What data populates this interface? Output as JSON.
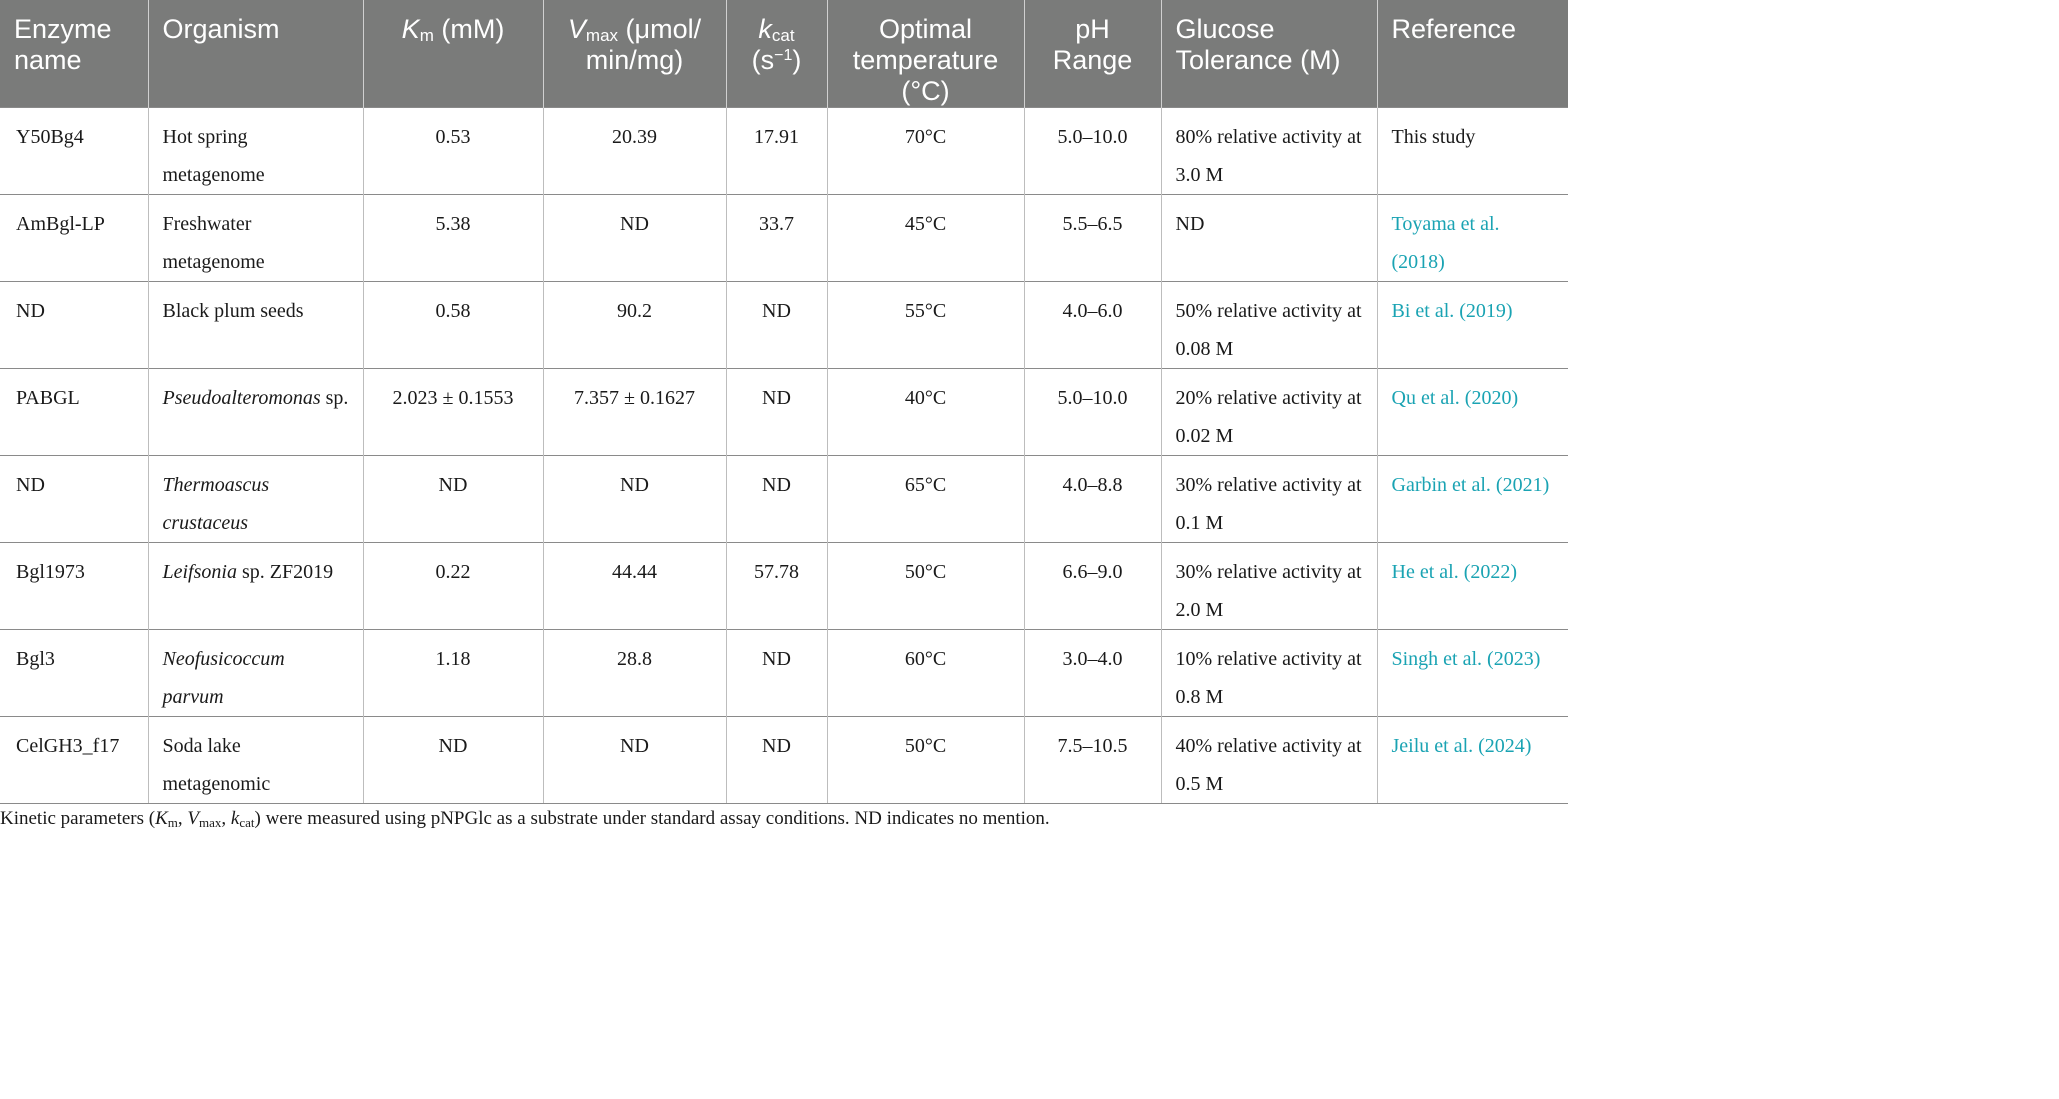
{
  "table": {
    "headers": {
      "enzyme": "Enzyme name",
      "organism": "Organism",
      "km_symbol": "K",
      "km_sub": "m",
      "km_unit": " (mM)",
      "vmax_symbol": "V",
      "vmax_sub": "max",
      "vmax_unit": " (μmol/ min/mg)",
      "kcat_symbol": "k",
      "kcat_sub": "cat",
      "kcat_unit_open": "(s",
      "kcat_unit_sup": "−1",
      "kcat_unit_close": ")",
      "temp": "Optimal temperature (°C)",
      "ph": "pH Range",
      "glucose": "Glucose Tolerance (M)",
      "reference": "Reference"
    },
    "rows": [
      {
        "enzyme": "Y50Bg4",
        "organism_italic": "",
        "organism_plain": "Hot spring metagenome",
        "km": "0.53",
        "vmax": "20.39",
        "kcat": "17.91",
        "temp": "70°C",
        "ph": "5.0–10.0",
        "glucose": "80% relative activity at 3.0 M",
        "reference_plain": "This study",
        "reference_link": ""
      },
      {
        "enzyme": "AmBgl-LP",
        "organism_italic": "",
        "organism_plain": "Freshwater metagenome",
        "km": "5.38",
        "vmax": "ND",
        "kcat": "33.7",
        "temp": "45°C",
        "ph": "5.5–6.5",
        "glucose": "ND",
        "reference_plain": "",
        "reference_link": "Toyama et al. (2018)"
      },
      {
        "enzyme": "ND",
        "organism_italic": "",
        "organism_plain": "Black plum seeds",
        "km": "0.58",
        "vmax": "90.2",
        "kcat": "ND",
        "temp": "55°C",
        "ph": "4.0–6.0",
        "glucose": "50% relative activity at 0.08 M",
        "reference_plain": "",
        "reference_link": "Bi et al. (2019)"
      },
      {
        "enzyme": "PABGL",
        "organism_italic": "Pseudoalteromonas",
        "organism_plain": " sp.",
        "km": "2.023 ± 0.1553",
        "vmax": "7.357 ± 0.1627",
        "kcat": "ND",
        "temp": "40°C",
        "ph": "5.0–10.0",
        "glucose": "20% relative activity at 0.02 M",
        "reference_plain": "",
        "reference_link": "Qu et al. (2020)"
      },
      {
        "enzyme": "ND",
        "organism_italic": "Thermoascus crustaceus",
        "organism_plain": "",
        "km": "ND",
        "vmax": "ND",
        "kcat": "ND",
        "temp": "65°C",
        "ph": "4.0–8.8",
        "glucose": "30% relative activity at 0.1 M",
        "reference_plain": "",
        "reference_link": "Garbin et al. (2021)"
      },
      {
        "enzyme": "Bgl1973",
        "organism_italic": "Leifsonia",
        "organism_plain": " sp. ZF2019",
        "km": "0.22",
        "vmax": "44.44",
        "kcat": "57.78",
        "temp": "50°C",
        "ph": "6.6–9.0",
        "glucose": "30% relative activity at 2.0 M",
        "reference_plain": "",
        "reference_link": "He et al. (2022)"
      },
      {
        "enzyme": "Bgl3",
        "organism_italic": "Neofusicoccum parvum",
        "organism_plain": "",
        "km": "1.18",
        "vmax": "28.8",
        "kcat": "ND",
        "temp": "60°C",
        "ph": "3.0–4.0",
        "glucose": "10% relative activity at 0.8 M",
        "reference_plain": "",
        "reference_link": "Singh et al. (2023)"
      },
      {
        "enzyme": "CelGH3_f17",
        "organism_italic": "",
        "organism_plain": "Soda lake metagenomic",
        "km": "ND",
        "vmax": "ND",
        "kcat": "ND",
        "temp": "50°C",
        "ph": "7.5–10.5",
        "glucose": "40% relative activity at 0.5 M",
        "reference_plain": "",
        "reference_link": "Jeilu et al. (2024)"
      }
    ]
  },
  "footnote": {
    "prefix": "Kinetic parameters (",
    "km": "K",
    "km_sub": "m",
    "sep1": ", ",
    "vmax": "V",
    "vmax_sub": "max",
    "sep2": ", ",
    "kcat": "k",
    "kcat_sub": "cat",
    "suffix": ") were measured using pNPGlc as a substrate under standard assay conditions. ND indicates no mention."
  },
  "colors": {
    "header_bg": "#7a7b7a",
    "header_text": "#ffffff",
    "link": "#1aa3b3",
    "body_text": "#1a1a1a"
  }
}
